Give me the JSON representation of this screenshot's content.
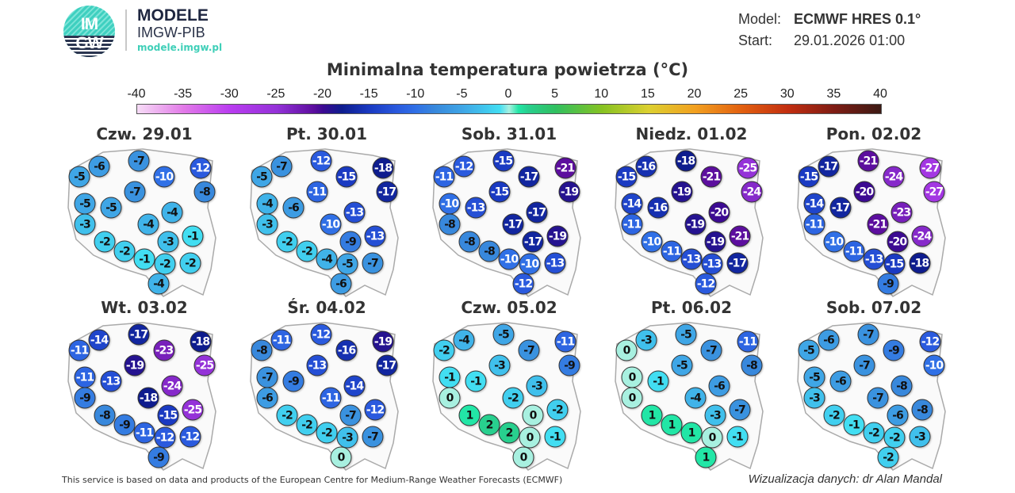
{
  "logo": {
    "circle_text_top": "IM",
    "circle_text_bottom": "GW",
    "name": "MODELE",
    "org": "IMGW-PIB",
    "url": "modele.imgw.pl"
  },
  "meta": {
    "model_label": "Model:",
    "model_value": "ECMWF HRES 0.1°",
    "start_label": "Start:",
    "start_value": "29.01.2026 01:00"
  },
  "footer": {
    "source": "This service is based on data and products of the European Centre for Medium-Range Weather Forecasts (ECMWF)",
    "credit": "Wizualizacja danych: dr Alan Mandal"
  },
  "chart_data": {
    "type": "map",
    "title": "Minimalna temperatura powietrza (°C)",
    "colorbar": {
      "ticks": [
        "-40",
        "-35",
        "-30",
        "-25",
        "-20",
        "-15",
        "-10",
        "-5",
        "0",
        "5",
        "10",
        "15",
        "20",
        "25",
        "30",
        "35",
        "40"
      ],
      "range": [
        -40,
        40
      ],
      "stops": [
        [
          -40,
          "#f6dcf6"
        ],
        [
          -35,
          "#e27ae8"
        ],
        [
          -30,
          "#b93cf0"
        ],
        [
          -25,
          "#9432d8"
        ],
        [
          -21,
          "#5c0e9e"
        ],
        [
          -20,
          "#3c0a92"
        ],
        [
          -18,
          "#0e1c8e"
        ],
        [
          -15,
          "#1a3ac2"
        ],
        [
          -12,
          "#2a5ade"
        ],
        [
          -10,
          "#3070e6"
        ],
        [
          -8,
          "#3888dc"
        ],
        [
          -5,
          "#3fa6e6"
        ],
        [
          -3,
          "#40c0ec"
        ],
        [
          -1,
          "#42def2"
        ],
        [
          0,
          "#a8f0e0"
        ],
        [
          1,
          "#22e6a6"
        ],
        [
          2,
          "#28cf8e"
        ],
        [
          5,
          "#30c060"
        ],
        [
          10,
          "#86c222"
        ],
        [
          15,
          "#dcd030"
        ],
        [
          20,
          "#f2a020"
        ],
        [
          25,
          "#e26010"
        ],
        [
          30,
          "#c22e10"
        ],
        [
          35,
          "#7e1c14"
        ],
        [
          40,
          "#3c1a14"
        ]
      ]
    },
    "stations": [
      "N1",
      "NW",
      "W1",
      "N2",
      "NE1",
      "C1",
      "NE2",
      "W2",
      "W3",
      "C2",
      "W4",
      "C3",
      "SE1",
      "E1",
      "S1",
      "S2",
      "S3",
      "S4",
      "E2",
      "S5"
    ],
    "days": [
      {
        "label": "Czw. 29.01",
        "values": [
          -7,
          -6,
          -5,
          -10,
          -12,
          -7,
          -8,
          -5,
          -5,
          -4,
          -3,
          -4,
          -3,
          -1,
          -2,
          -2,
          -1,
          -2,
          -2,
          -4
        ]
      },
      {
        "label": "Pt. 30.01",
        "values": [
          -12,
          -7,
          -5,
          -15,
          -18,
          -11,
          -17,
          -4,
          -6,
          -13,
          -3,
          -10,
          -9,
          -13,
          -2,
          -2,
          -4,
          -5,
          -7,
          -6
        ]
      },
      {
        "label": "Sob. 31.01",
        "values": [
          -15,
          -12,
          -11,
          -17,
          -21,
          -15,
          -19,
          -10,
          -13,
          -17,
          -8,
          -17,
          -17,
          -19,
          -8,
          -8,
          -10,
          -10,
          -13,
          -12
        ]
      },
      {
        "label": "Niedz. 01.02",
        "values": [
          -18,
          -16,
          -15,
          -21,
          -25,
          -19,
          -24,
          -14,
          -16,
          -20,
          -11,
          -19,
          -19,
          -21,
          -10,
          -11,
          -13,
          -13,
          -17,
          -12
        ]
      },
      {
        "label": "Pon. 02.02",
        "values": [
          -21,
          -17,
          -15,
          -24,
          -27,
          -20,
          -27,
          -14,
          -17,
          -23,
          -11,
          -21,
          -20,
          -24,
          -10,
          -11,
          -13,
          -15,
          -18,
          -9
        ]
      },
      {
        "label": "Wt. 03.02",
        "values": [
          -17,
          -14,
          -11,
          -23,
          -18,
          -19,
          -25,
          -11,
          -13,
          -24,
          -9,
          -18,
          -15,
          -25,
          -8,
          -9,
          -11,
          -12,
          -12,
          -9
        ]
      },
      {
        "label": "Śr. 04.02",
        "values": [
          -12,
          -11,
          -8,
          -16,
          -19,
          -13,
          -17,
          -7,
          -9,
          -14,
          -6,
          -11,
          -7,
          -12,
          -2,
          -2,
          -2,
          -3,
          -7,
          0
        ]
      },
      {
        "label": "Czw. 05.02",
        "values": [
          -5,
          -4,
          -2,
          -7,
          -11,
          -3,
          -9,
          -1,
          -1,
          -3,
          0,
          -2,
          0,
          -2,
          1,
          2,
          2,
          0,
          -1,
          0
        ]
      },
      {
        "label": "Pt. 06.02",
        "values": [
          -5,
          -3,
          0,
          -7,
          -11,
          -5,
          -8,
          0,
          -1,
          -6,
          0,
          -4,
          -3,
          -7,
          1,
          1,
          1,
          0,
          -1,
          1
        ]
      },
      {
        "label": "Sob. 07.02",
        "values": [
          -7,
          -6,
          -5,
          -9,
          -12,
          -7,
          -10,
          -5,
          -6,
          -8,
          -3,
          -7,
          -6,
          -8,
          -2,
          -1,
          -2,
          -2,
          -3,
          -2
        ]
      }
    ]
  }
}
